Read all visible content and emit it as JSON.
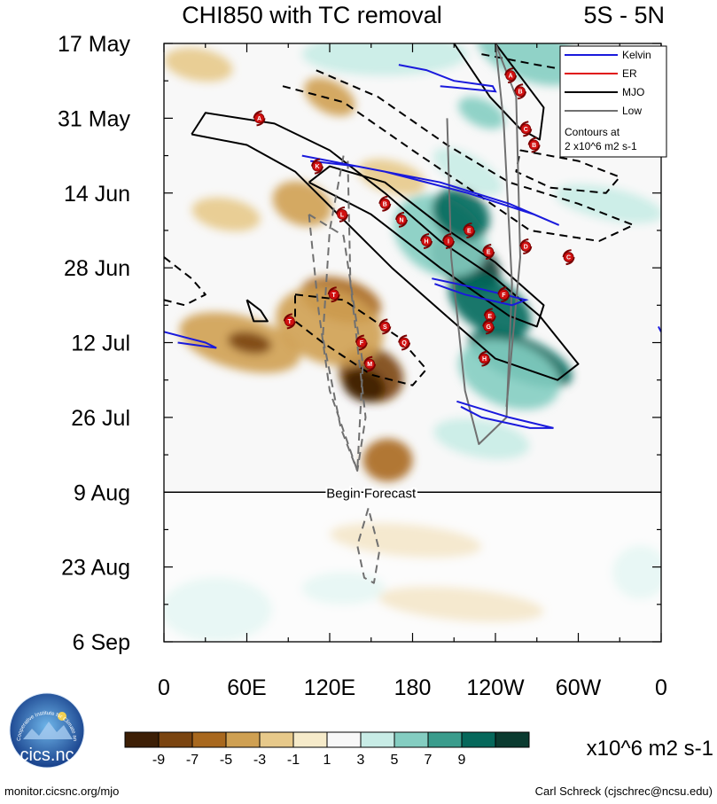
{
  "chart_data": {
    "type": "heatmap",
    "title": "CHI850 with TC removal",
    "region": "5S - 5N",
    "y_tick_labels": [
      "17 May",
      "31 May",
      "14 Jun",
      "28 Jun",
      "12 Jul",
      "26 Jul",
      "9 Aug",
      "23 Aug",
      "6 Sep"
    ],
    "x_tick_labels": [
      "0",
      "60E",
      "120E",
      "180",
      "120W",
      "60W",
      "0"
    ],
    "x_range_deg": [
      0,
      360
    ],
    "y_range_days": [
      0,
      112
    ],
    "forecast_start_day": 84,
    "forecast_label": "Begin Forecast",
    "legend": {
      "entries": [
        {
          "label": "Kelvin",
          "color": "#1a1adc"
        },
        {
          "label": "ER",
          "color": "#e01010"
        },
        {
          "label": "MJO",
          "color": "#000000"
        },
        {
          "label": "Low",
          "color": "#707070"
        }
      ],
      "note_line1": "Contours at",
      "note_line2": "2 x10^6 m2 s-1"
    },
    "colorbar": {
      "units": "x10^6 m2 s-1",
      "labels": [
        "-9",
        "-7",
        "-5",
        "-3",
        "-1",
        "1",
        "3",
        "5",
        "7",
        "9"
      ],
      "colors": [
        "#3d1f06",
        "#7a4410",
        "#a8681e",
        "#cfa052",
        "#e7c98a",
        "#f6ebca",
        "#f8f8f8",
        "#c8ece6",
        "#84cdc1",
        "#3a9c8c",
        "#06685b",
        "#0b3b30"
      ]
    },
    "anomaly_blobs": [
      {
        "lon": 218,
        "day": 41,
        "rlon": 28,
        "rday": 4.5,
        "rot": 32,
        "level": 5
      },
      {
        "lon": 236,
        "day": 49,
        "rlon": 33,
        "rday": 5,
        "rot": 32,
        "level": 4
      },
      {
        "lon": 200,
        "day": 36,
        "rlon": 36,
        "rday": 7,
        "rot": 32,
        "level": 2
      },
      {
        "lon": 215,
        "day": 32,
        "rlon": 22,
        "rday": 4.5,
        "rot": 32,
        "level": 4
      },
      {
        "lon": 258,
        "day": 59,
        "rlon": 40,
        "rday": 4,
        "rot": 22,
        "level": 4
      },
      {
        "lon": 250,
        "day": 62,
        "rlon": 38,
        "rday": 6,
        "rot": 20,
        "level": 2
      },
      {
        "lon": 230,
        "day": 13,
        "rlon": 18,
        "rday": 2.5,
        "rot": 25,
        "level": 2
      },
      {
        "lon": 220,
        "day": 24,
        "rlon": 28,
        "rday": 3,
        "rot": 30,
        "level": 1
      },
      {
        "lon": 230,
        "day": 74,
        "rlon": 35,
        "rday": 3.5,
        "rot": 10,
        "level": 1
      },
      {
        "lon": 265,
        "day": 2,
        "rlon": 40,
        "rday": 5,
        "rot": 20,
        "level": 2
      },
      {
        "lon": 160,
        "day": 2,
        "rlon": 60,
        "rday": 4,
        "rot": 0,
        "level": 0
      },
      {
        "lon": 322,
        "day": 30,
        "rlon": 40,
        "rday": 3,
        "rot": 12,
        "level": 0
      },
      {
        "lon": 340,
        "day": 12,
        "rlon": 18,
        "rday": 8,
        "rot": 0,
        "level": 0
      },
      {
        "lon": 38,
        "day": 106,
        "rlon": 40,
        "rday": 6,
        "rot": 0,
        "level": 0
      },
      {
        "lon": 130,
        "day": 102,
        "rlon": 30,
        "rday": 3,
        "rot": 0,
        "level": 0
      },
      {
        "lon": 345,
        "day": 99,
        "rlon": 20,
        "rday": 5,
        "rot": 0,
        "level": 0
      },
      {
        "lon": 120,
        "day": 10,
        "rlon": 20,
        "rday": 3,
        "rot": 28,
        "level": -2
      },
      {
        "lon": 100,
        "day": 30,
        "rlon": 22,
        "rday": 4,
        "rot": 20,
        "level": -2
      },
      {
        "lon": 150,
        "day": 62,
        "rlon": 24,
        "rday": 5,
        "rot": 22,
        "level": -4
      },
      {
        "lon": 145,
        "day": 64,
        "rlon": 16,
        "rday": 3,
        "rot": 20,
        "level": -5
      },
      {
        "lon": 128,
        "day": 48,
        "rlon": 30,
        "rday": 4,
        "rot": 15,
        "level": -3
      },
      {
        "lon": 120,
        "day": 53,
        "rlon": 40,
        "rday": 7,
        "rot": 18,
        "level": -2
      },
      {
        "lon": 55,
        "day": 56,
        "rlon": 45,
        "rday": 5,
        "rot": 15,
        "level": -2
      },
      {
        "lon": 62,
        "day": 56,
        "rlon": 16,
        "rday": 2,
        "rot": 10,
        "level": -4
      },
      {
        "lon": 162,
        "day": 78,
        "rlon": 18,
        "rday": 4,
        "rot": 0,
        "level": -3
      },
      {
        "lon": 175,
        "day": 93,
        "rlon": 55,
        "rday": 3,
        "rot": 5,
        "level": -1
      },
      {
        "lon": 215,
        "day": 105,
        "rlon": 60,
        "rday": 3,
        "rot": 5,
        "level": -1
      },
      {
        "lon": 25,
        "day": 4,
        "rlon": 25,
        "rday": 3,
        "rot": 10,
        "level": -1
      },
      {
        "lon": 45,
        "day": 32,
        "rlon": 25,
        "rday": 3,
        "rot": 10,
        "level": -1
      },
      {
        "lon": 165,
        "day": 25,
        "rlon": 25,
        "rday": 3,
        "rot": 15,
        "level": -1
      }
    ],
    "contours": [
      {
        "kind": "mjo",
        "dashed": false,
        "points": [
          [
            210,
            0
          ],
          [
            236,
            10
          ],
          [
            258,
            16
          ],
          [
            272,
            18
          ],
          [
            275,
            12
          ],
          [
            240,
            0
          ]
        ]
      },
      {
        "kind": "mjo",
        "dashed": false,
        "points": [
          [
            20,
            17
          ],
          [
            60,
            19
          ],
          [
            95,
            24
          ],
          [
            130,
            33
          ],
          [
            165,
            42
          ],
          [
            200,
            50
          ],
          [
            240,
            59
          ],
          [
            285,
            63
          ],
          [
            300,
            60
          ],
          [
            272,
            51
          ],
          [
            240,
            44
          ],
          [
            200,
            37
          ],
          [
            160,
            28
          ],
          [
            120,
            20
          ],
          [
            80,
            15
          ],
          [
            30,
            13
          ],
          [
            20,
            17
          ]
        ]
      },
      {
        "kind": "mjo",
        "dashed": false,
        "points": [
          [
            105,
            26
          ],
          [
            150,
            32
          ],
          [
            200,
            42
          ],
          [
            250,
            51
          ],
          [
            270,
            53
          ],
          [
            275,
            49
          ],
          [
            240,
            41
          ],
          [
            200,
            34
          ],
          [
            160,
            26
          ],
          [
            120,
            23
          ],
          [
            105,
            26
          ]
        ]
      },
      {
        "kind": "mjo",
        "dashed": true,
        "points": [
          [
            86,
            8
          ],
          [
            130,
            11
          ],
          [
            180,
            20
          ],
          [
            220,
            27
          ],
          [
            265,
            35
          ],
          [
            315,
            37
          ],
          [
            340,
            34
          ],
          [
            300,
            30
          ],
          [
            250,
            26
          ],
          [
            205,
            19
          ],
          [
            155,
            10
          ],
          [
            110,
            5
          ]
        ]
      },
      {
        "kind": "mjo",
        "dashed": true,
        "points": [
          [
            258,
            20
          ],
          [
            300,
            22
          ],
          [
            330,
            25
          ],
          [
            320,
            28
          ],
          [
            280,
            27
          ],
          [
            255,
            24
          ],
          [
            258,
            20
          ]
        ]
      },
      {
        "kind": "mjo",
        "dashed": true,
        "points": [
          [
            230,
            2
          ],
          [
            270,
            4
          ],
          [
            315,
            6
          ]
        ]
      },
      {
        "kind": "mjo",
        "dashed": true,
        "points": [
          [
            0,
            40
          ],
          [
            20,
            44
          ],
          [
            30,
            47
          ],
          [
            15,
            49
          ],
          [
            0,
            48
          ]
        ]
      },
      {
        "kind": "mjo",
        "dashed": true,
        "points": [
          [
            95,
            47
          ],
          [
            130,
            48
          ],
          [
            170,
            55
          ],
          [
            190,
            61
          ],
          [
            180,
            64
          ],
          [
            150,
            62
          ],
          [
            115,
            56
          ],
          [
            95,
            52
          ],
          [
            95,
            47
          ]
        ]
      },
      {
        "kind": "mjo",
        "dashed": false,
        "points": [
          [
            60,
            48
          ],
          [
            70,
            50
          ],
          [
            75,
            52
          ],
          [
            65,
            52
          ],
          [
            60,
            48
          ]
        ]
      },
      {
        "kind": "low",
        "dashed": false,
        "points": [
          [
            205,
            14
          ],
          [
            208,
            40
          ],
          [
            218,
            65
          ],
          [
            228,
            75
          ],
          [
            248,
            70
          ],
          [
            252,
            45
          ],
          [
            246,
            15
          ],
          [
            240,
            0
          ]
        ]
      },
      {
        "kind": "low",
        "dashed": false,
        "points": [
          [
            240,
            0
          ],
          [
            255,
            10
          ],
          [
            258,
            40
          ],
          [
            248,
            68
          ]
        ]
      },
      {
        "kind": "low",
        "dashed": true,
        "points": [
          [
            130,
            21
          ],
          [
            120,
            35
          ],
          [
            115,
            55
          ],
          [
            128,
            72
          ],
          [
            140,
            80
          ],
          [
            146,
            70
          ],
          [
            135,
            45
          ],
          [
            133,
            21
          ]
        ]
      },
      {
        "kind": "low",
        "dashed": true,
        "points": [
          [
            105,
            32
          ],
          [
            112,
            50
          ],
          [
            120,
            65
          ],
          [
            140,
            80
          ],
          [
            144,
            60
          ],
          [
            130,
            36
          ],
          [
            105,
            32
          ]
        ]
      },
      {
        "kind": "low",
        "dashed": true,
        "points": [
          [
            148,
            87
          ],
          [
            140,
            94
          ],
          [
            145,
            100
          ],
          [
            152,
            101
          ],
          [
            156,
            95
          ],
          [
            148,
            87
          ]
        ]
      }
    ],
    "kelvin_waves": [
      {
        "points": [
          [
            170,
            4
          ],
          [
            190,
            5
          ],
          [
            210,
            7
          ],
          [
            238,
            8
          ],
          [
            240,
            9
          ],
          [
            200,
            8
          ]
        ]
      },
      {
        "points": [
          [
            100,
            21
          ],
          [
            160,
            24
          ],
          [
            220,
            28
          ],
          [
            268,
            32
          ],
          [
            286,
            34
          ],
          [
            250,
            30
          ],
          [
            200,
            26
          ],
          [
            140,
            23
          ],
          [
            106,
            22
          ]
        ]
      },
      {
        "points": [
          [
            194,
            44
          ],
          [
            230,
            46
          ],
          [
            262,
            48
          ],
          [
            252,
            49
          ],
          [
            218,
            47
          ],
          [
            196,
            45
          ]
        ]
      },
      {
        "points": [
          [
            0,
            54
          ],
          [
            30,
            56
          ],
          [
            38,
            57
          ],
          [
            10,
            56
          ]
        ]
      },
      {
        "points": [
          [
            212,
            67
          ],
          [
            250,
            70
          ],
          [
            282,
            72
          ],
          [
            265,
            72
          ],
          [
            230,
            70
          ],
          [
            215,
            68
          ]
        ]
      },
      {
        "points": [
          [
            358,
            53
          ],
          [
            360,
            54
          ]
        ]
      }
    ],
    "storms": [
      {
        "letter": "A",
        "lon": 251,
        "day": 6
      },
      {
        "letter": "B",
        "lon": 258,
        "day": 9
      },
      {
        "letter": "A",
        "lon": 69,
        "day": 14
      },
      {
        "letter": "C",
        "lon": 262,
        "day": 16
      },
      {
        "letter": "B",
        "lon": 268,
        "day": 19
      },
      {
        "letter": "K",
        "lon": 111,
        "day": 23
      },
      {
        "letter": "B",
        "lon": 160,
        "day": 30
      },
      {
        "letter": "L",
        "lon": 129,
        "day": 32
      },
      {
        "letter": "N",
        "lon": 172,
        "day": 33
      },
      {
        "letter": "E",
        "lon": 221,
        "day": 35
      },
      {
        "letter": "H",
        "lon": 190,
        "day": 37
      },
      {
        "letter": "I",
        "lon": 206,
        "day": 37
      },
      {
        "letter": "E",
        "lon": 235,
        "day": 39
      },
      {
        "letter": "D",
        "lon": 262,
        "day": 38
      },
      {
        "letter": "C",
        "lon": 293,
        "day": 40
      },
      {
        "letter": "T",
        "lon": 123,
        "day": 47
      },
      {
        "letter": "F",
        "lon": 246,
        "day": 47
      },
      {
        "letter": "E",
        "lon": 236,
        "day": 51
      },
      {
        "letter": "T",
        "lon": 91,
        "day": 52
      },
      {
        "letter": "G",
        "lon": 235,
        "day": 53
      },
      {
        "letter": "S",
        "lon": 160,
        "day": 53
      },
      {
        "letter": "F",
        "lon": 143,
        "day": 56
      },
      {
        "letter": "Q",
        "lon": 174,
        "day": 56
      },
      {
        "letter": "H",
        "lon": 232,
        "day": 59
      },
      {
        "letter": "M",
        "lon": 149,
        "day": 60
      }
    ]
  },
  "footer": {
    "logo_text": "cics.nc",
    "logo_ring_text": "Cooperative Institute for Climate and Satellites",
    "left_credit": "monitor.cicsnc.org/mjo",
    "right_credit": "Carl Schreck (cjschrec@ncsu.edu)"
  }
}
